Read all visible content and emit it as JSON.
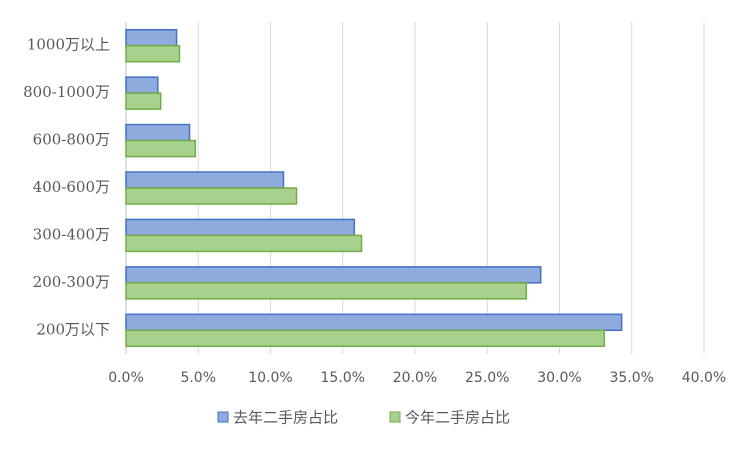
{
  "chart_data": {
    "type": "barh",
    "categories": [
      "1000万以上",
      "800-1000万",
      "600-800万",
      "400-600万",
      "300-400万",
      "200-300万",
      "200万以下"
    ],
    "series": [
      {
        "name": "去年二手房占比",
        "color": "#8faadc",
        "edgecolor": "#4472c4",
        "values": [
          3.5,
          2.2,
          4.4,
          10.9,
          15.8,
          28.7,
          34.3
        ]
      },
      {
        "name": "今年二手房占比",
        "color": "#a9d18e",
        "edgecolor": "#70ad47",
        "values": [
          3.7,
          2.4,
          4.8,
          11.8,
          16.3,
          27.7,
          33.1
        ]
      }
    ],
    "xlim": [
      0,
      40
    ],
    "xticks": [
      {
        "value": 0,
        "label": "0.0%"
      },
      {
        "value": 5,
        "label": "5.0%"
      },
      {
        "value": 10,
        "label": "10.0%"
      },
      {
        "value": 15,
        "label": "15.0%"
      },
      {
        "value": 20,
        "label": "20.0%"
      },
      {
        "value": 25,
        "label": "25.0%"
      },
      {
        "value": 30,
        "label": "30.0%"
      },
      {
        "value": 35,
        "label": "35.0%"
      },
      {
        "value": 40,
        "label": "40.0%"
      }
    ],
    "grid": true,
    "legend": "bottom"
  }
}
